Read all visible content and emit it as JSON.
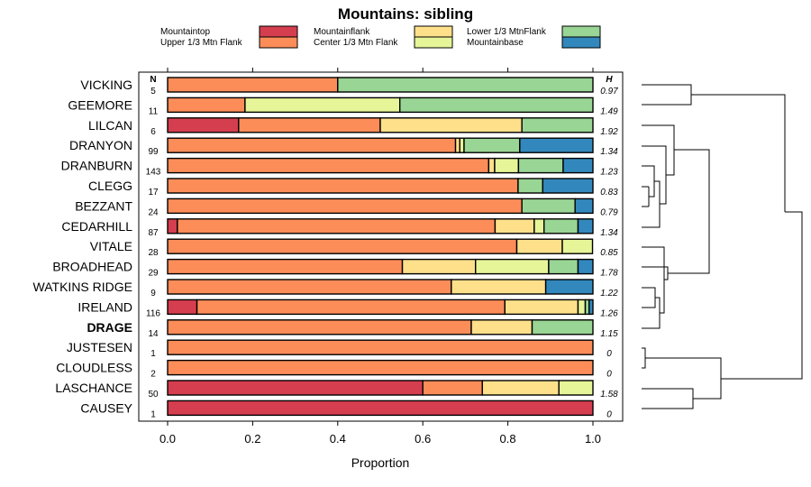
{
  "chart_data": {
    "type": "bar",
    "stacked": true,
    "orientation": "horizontal",
    "title": "Mountains: sibling",
    "xlabel": "Proportion",
    "ylabel": "",
    "xlim": [
      0,
      1
    ],
    "xticks": [
      0,
      0.2,
      0.4,
      0.6,
      0.8,
      1
    ],
    "xtick_labels": [
      "0.0",
      "0.2",
      "0.4",
      "0.6",
      "0.8",
      "1.0"
    ],
    "n_header": "N",
    "h_header": "H",
    "highlight_row": "DRAGE",
    "legend": [
      {
        "name": "Mountaintop",
        "color": "#d53e4f"
      },
      {
        "name": "Upper 1/3 Mtn Flank",
        "color": "#fc8d59"
      },
      {
        "name": "Mountainflank",
        "color": "#fee08b"
      },
      {
        "name": "Center 1/3 Mtn Flank",
        "color": "#e6f598"
      },
      {
        "name": "Lower 1/3 MtnFlank",
        "color": "#99d594"
      },
      {
        "name": "Mountainbase",
        "color": "#3288bd"
      }
    ],
    "categories": [
      "VICKING",
      "GEEMORE",
      "LILCAN",
      "DRANYON",
      "DRANBURN",
      "CLEGG",
      "BEZZANT",
      "CEDARHILL",
      "VITALE",
      "BROADHEAD",
      "WATKINS RIDGE",
      "IRELAND",
      "DRAGE",
      "JUSTESEN",
      "CLOUDLESS",
      "LASCHANCE",
      "CAUSEY"
    ],
    "n": [
      "5",
      "11",
      "6",
      "99",
      "143",
      "17",
      "24",
      "87",
      "28",
      "29",
      "9",
      "116",
      "14",
      "1",
      "2",
      "50",
      "1"
    ],
    "h": [
      "0.97",
      "1.49",
      "1.92",
      "1.34",
      "1.23",
      "0.83",
      "0.79",
      "1.34",
      "0.85",
      "1.78",
      "1.22",
      "1.26",
      "1.15",
      "0",
      "0",
      "1.58",
      "0"
    ],
    "series": [
      {
        "name": "Mountaintop",
        "values": [
          0,
          0,
          0.167,
          0,
          0,
          0,
          0,
          0.023,
          0,
          0,
          0,
          0.069,
          0,
          0,
          0,
          0.6,
          1.0
        ]
      },
      {
        "name": "Upper 1/3 Mtn Flank",
        "values": [
          0.4,
          0.182,
          0.333,
          0.677,
          0.755,
          0.824,
          0.833,
          0.747,
          0.821,
          0.552,
          0.667,
          0.724,
          0.714,
          1.0,
          1.0,
          0.14,
          0
        ]
      },
      {
        "name": "Mountainflank",
        "values": [
          0,
          0,
          0.333,
          0.01,
          0.014,
          0,
          0,
          0.092,
          0.107,
          0.172,
          0.222,
          0.172,
          0.143,
          0,
          0,
          0.18,
          0
        ]
      },
      {
        "name": "Center 1/3 Mtn Flank",
        "values": [
          0,
          0.364,
          0,
          0.01,
          0.056,
          0,
          0,
          0.023,
          0.071,
          0.172,
          0,
          0.017,
          0,
          0,
          0,
          0.08,
          0
        ]
      },
      {
        "name": "Lower 1/3 MtnFlank",
        "values": [
          0.6,
          0.454,
          0.167,
          0.131,
          0.105,
          0.058,
          0.125,
          0.08,
          0,
          0.069,
          0,
          0.009,
          0.143,
          0,
          0,
          0,
          0
        ]
      },
      {
        "name": "Mountainbase",
        "values": [
          0,
          0,
          0,
          0.172,
          0.07,
          0.118,
          0.042,
          0.035,
          0,
          0.035,
          0.111,
          0.009,
          0,
          0,
          0,
          0,
          0
        ]
      }
    ],
    "dendrogram": "hierarchical clustering of the rows, drawn at right"
  }
}
